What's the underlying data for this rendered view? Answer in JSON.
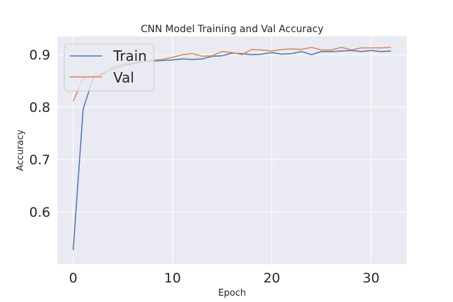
{
  "chart_data": {
    "type": "line",
    "title": "CNN Model Training and Val Accuracy",
    "xlabel": "Epoch",
    "ylabel": "Accuracy",
    "xlim": [
      -1.6,
      33.6
    ],
    "ylim": [
      0.5,
      0.935
    ],
    "x_ticks": [
      0,
      10,
      20,
      30
    ],
    "y_ticks": [
      0.6,
      0.7,
      0.8,
      0.9
    ],
    "x_tick_labels": [
      "0",
      "10",
      "20",
      "30"
    ],
    "y_tick_labels": [
      "0.6",
      "0.7",
      "0.8",
      "0.9"
    ],
    "grid": true,
    "legend_position": "upper-left",
    "x": [
      0,
      1,
      2,
      3,
      4,
      5,
      6,
      7,
      8,
      9,
      10,
      11,
      12,
      13,
      14,
      15,
      16,
      17,
      18,
      19,
      20,
      21,
      22,
      23,
      24,
      25,
      26,
      27,
      28,
      29,
      30,
      31,
      32
    ],
    "series": [
      {
        "name": "Train",
        "color": "#4c72b0",
        "values": [
          0.527,
          0.796,
          0.855,
          0.865,
          0.873,
          0.879,
          0.883,
          0.886,
          0.888,
          0.889,
          0.89,
          0.892,
          0.891,
          0.892,
          0.897,
          0.898,
          0.903,
          0.902,
          0.9,
          0.901,
          0.904,
          0.901,
          0.902,
          0.906,
          0.9,
          0.906,
          0.906,
          0.907,
          0.908,
          0.906,
          0.908,
          0.906,
          0.907
        ]
      },
      {
        "name": "Val",
        "color": "#dd8452",
        "values": [
          0.811,
          0.855,
          0.859,
          0.862,
          0.876,
          0.882,
          0.885,
          0.887,
          0.889,
          0.891,
          0.895,
          0.9,
          0.902,
          0.897,
          0.898,
          0.906,
          0.904,
          0.9,
          0.91,
          0.909,
          0.907,
          0.91,
          0.911,
          0.91,
          0.914,
          0.909,
          0.909,
          0.914,
          0.909,
          0.913,
          0.913,
          0.913,
          0.914
        ]
      }
    ]
  }
}
